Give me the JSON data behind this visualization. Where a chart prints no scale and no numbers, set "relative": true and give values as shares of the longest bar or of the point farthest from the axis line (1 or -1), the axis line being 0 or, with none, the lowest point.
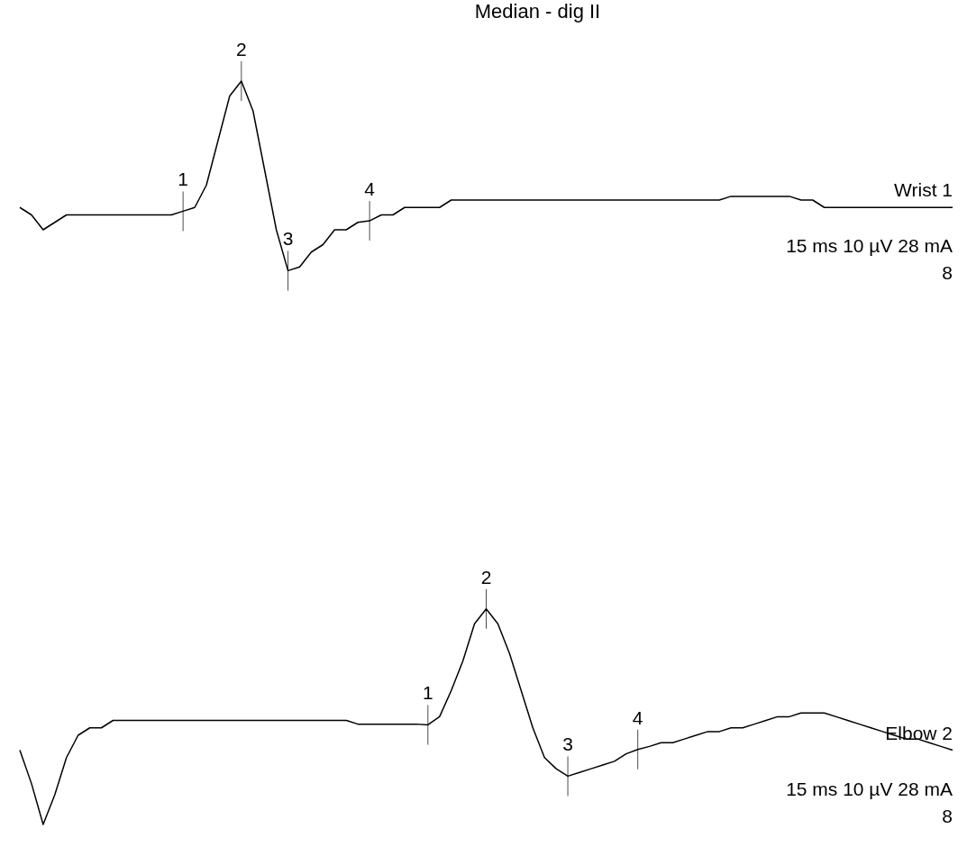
{
  "chart_data": {
    "type": "line",
    "title": "Median - dig II",
    "relative": true,
    "legend": false,
    "categories": [
      null,
      null,
      null,
      null,
      null,
      null,
      null,
      null,
      null,
      null,
      null,
      null,
      null,
      null,
      null,
      null,
      null,
      null,
      null,
      null,
      null,
      null,
      null,
      null,
      null,
      null,
      null,
      null,
      null,
      null,
      null,
      null,
      null,
      null,
      null,
      null,
      null,
      null,
      null,
      null,
      null,
      null,
      null,
      null,
      null,
      null,
      null,
      null,
      null,
      null,
      null,
      null,
      null,
      null,
      null,
      null,
      null,
      null,
      null,
      null,
      null,
      null,
      null,
      null,
      null,
      null,
      null,
      null,
      null,
      null,
      null,
      null,
      null,
      null,
      null,
      null,
      null,
      null,
      null,
      null,
      null
    ],
    "series": [
      {
        "name": "Wrist 1",
        "color": "#000000",
        "values": [
          0.83,
          0.82,
          0.8,
          0.81,
          0.82,
          0.82,
          0.82,
          0.82,
          0.82,
          0.82,
          0.82,
          0.82,
          0.82,
          0.82,
          0.825,
          0.83,
          0.86,
          0.92,
          0.98,
          1,
          0.96,
          0.88,
          0.8,
          0.745,
          0.75,
          0.77,
          0.78,
          0.8,
          0.8,
          0.81,
          0.812,
          0.82,
          0.82,
          0.83,
          0.83,
          0.83,
          0.83,
          0.84,
          0.84,
          0.84,
          0.84,
          0.84,
          0.84,
          0.84,
          0.84,
          0.84,
          0.84,
          0.84,
          0.84,
          0.84,
          0.84,
          0.84,
          0.84,
          0.84,
          0.84,
          0.84,
          0.84,
          0.84,
          0.84,
          0.84,
          0.84,
          0.845,
          0.845,
          0.845,
          0.845,
          0.845,
          0.845,
          0.84,
          0.84,
          0.83,
          0.83,
          0.83,
          0.83,
          0.83,
          0.83,
          0.83,
          0.83,
          0.83,
          0.83,
          0.83,
          0.83
        ]
      },
      {
        "name": "Elbow 2",
        "color": "#000000",
        "values": [
          0.1,
          0.055,
          0,
          0.04,
          0.09,
          0.12,
          0.13,
          0.13,
          0.14,
          0.14,
          0.14,
          0.14,
          0.14,
          0.14,
          0.14,
          0.14,
          0.14,
          0.14,
          0.14,
          0.14,
          0.14,
          0.14,
          0.14,
          0.14,
          0.14,
          0.14,
          0.14,
          0.14,
          0.14,
          0.135,
          0.135,
          0.135,
          0.135,
          0.135,
          0.135,
          0.134,
          0.145,
          0.18,
          0.22,
          0.27,
          0.29,
          0.27,
          0.23,
          0.18,
          0.13,
          0.09,
          0.075,
          0.065,
          0.07,
          0.075,
          0.08,
          0.085,
          0.095,
          0.101,
          0.105,
          0.11,
          0.11,
          0.115,
          0.12,
          0.125,
          0.125,
          0.13,
          0.13,
          0.135,
          0.14,
          0.145,
          0.145,
          0.15,
          0.15,
          0.15,
          0.145,
          0.14,
          0.135,
          0.13,
          0.125,
          0.12,
          0.115,
          0.115,
          0.11,
          0.105,
          0.1
        ]
      }
    ],
    "annotations": [
      "15 ms 10 µV 28 mA",
      "8",
      "15 ms 10 µV 28 mA",
      "8",
      {
        "text": "1",
        "y": 0.825
      },
      {
        "text": "2",
        "y": 1
      },
      {
        "text": "3",
        "y": 0.745
      },
      {
        "text": "4",
        "y": 0.812
      },
      {
        "text": "1",
        "y": 0.134
      },
      {
        "text": "2",
        "y": 0.29
      },
      {
        "text": "3",
        "y": 0.065
      },
      {
        "text": "4",
        "y": 0.101
      }
    ]
  }
}
